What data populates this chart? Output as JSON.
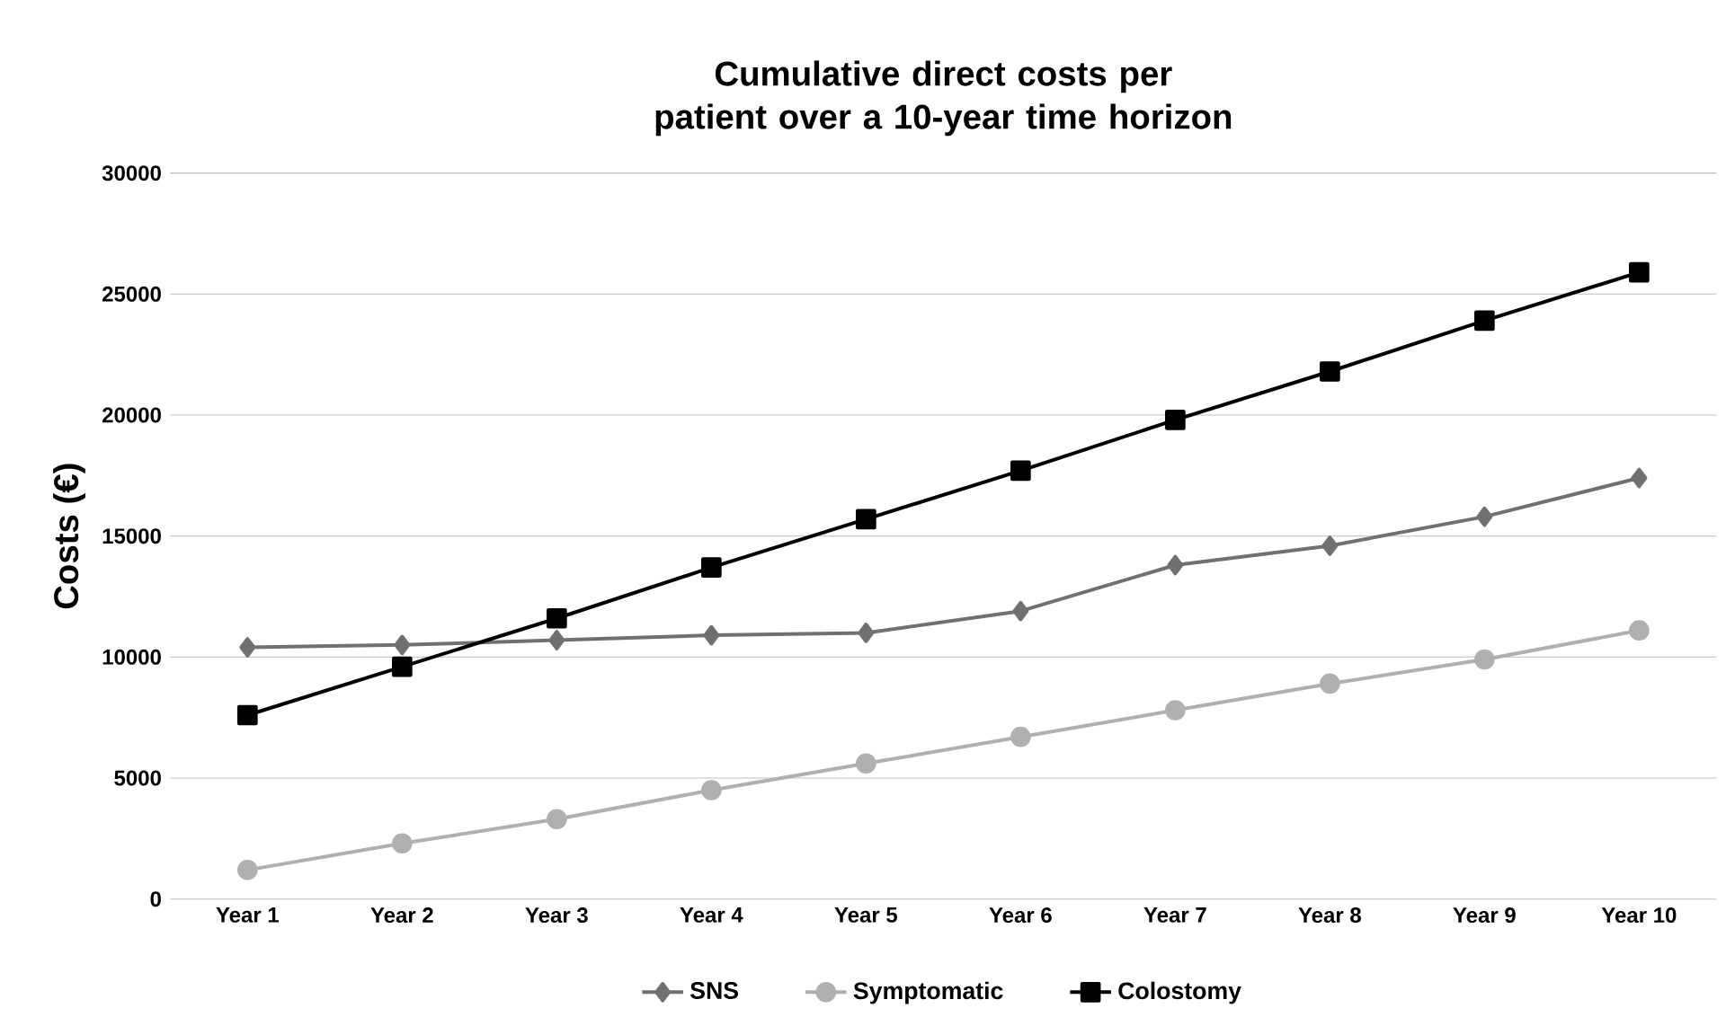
{
  "chart_data": {
    "type": "line",
    "title": "Cumulative direct costs per patient over a 10-year time horizon",
    "ylabel": "Costs (€)",
    "categories": [
      "Year 1",
      "Year 2",
      "Year 3",
      "Year 4",
      "Year 5",
      "Year 6",
      "Year 7",
      "Year 8",
      "Year 9",
      "Year 10"
    ],
    "series": [
      {
        "name": "SNS",
        "color": "#707070",
        "marker": "diamond",
        "values": [
          10400,
          10500,
          10700,
          10900,
          11000,
          11900,
          13800,
          14600,
          15800,
          17400
        ]
      },
      {
        "name": "Symptomatic",
        "color": "#b0b0b0",
        "marker": "circle",
        "values": [
          1200,
          2300,
          3300,
          4500,
          5600,
          6700,
          7800,
          8900,
          9900,
          11100
        ]
      },
      {
        "name": "Colostomy",
        "color": "#000000",
        "marker": "square",
        "values": [
          7600,
          9600,
          11600,
          13700,
          15700,
          17700,
          19800,
          21800,
          23900,
          25900
        ]
      }
    ],
    "ylim": [
      0,
      30000
    ],
    "yticks": [
      0,
      5000,
      10000,
      15000,
      20000,
      25000,
      30000
    ],
    "grid": "y",
    "legend": "bottom",
    "line_style": "solid"
  }
}
